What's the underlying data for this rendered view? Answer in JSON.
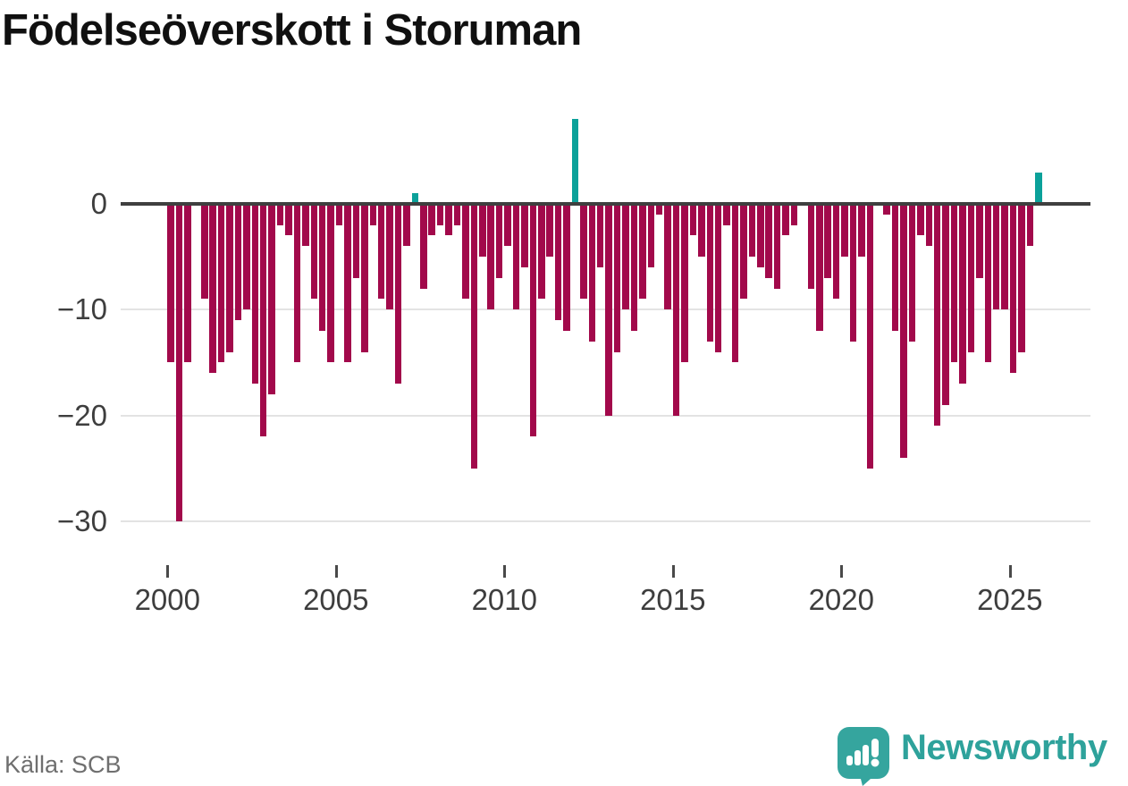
{
  "header": {
    "title": "Födelseöverskott i Storuman"
  },
  "footer": {
    "source": "Källa: SCB",
    "brand": "Newsworthy"
  },
  "chart_data": {
    "type": "bar",
    "title": "Födelseöverskott i Storuman",
    "frequency": "quarterly",
    "start_year": 2000,
    "categories_note": "values are quarterly birth surplus from 2000Q1 through 2025Q4",
    "values": [
      -15,
      -30,
      -15,
      0,
      -9,
      -16,
      -15,
      -14,
      -11,
      -10,
      -17,
      -22,
      -18,
      -2,
      -3,
      -15,
      -4,
      -9,
      -12,
      -15,
      -2,
      -15,
      -7,
      -14,
      -2,
      -9,
      -10,
      -17,
      -4,
      1,
      -8,
      -3,
      -2,
      -3,
      -2,
      -9,
      -25,
      -5,
      -10,
      -7,
      -4,
      -10,
      -6,
      -22,
      -9,
      -5,
      -11,
      -12,
      8,
      -9,
      -13,
      -6,
      -20,
      -14,
      -10,
      -12,
      -9,
      -6,
      -1,
      -10,
      -20,
      -15,
      -3,
      -5,
      -13,
      -14,
      -2,
      -15,
      -9,
      -5,
      -6,
      -7,
      -8,
      -3,
      -2,
      0,
      -8,
      -12,
      -7,
      -9,
      -5,
      -13,
      -5,
      -25,
      0,
      -1,
      -12,
      -24,
      -13,
      -3,
      -4,
      -21,
      -19,
      -15,
      -17,
      -14,
      -7,
      -15,
      -10,
      -10,
      -16,
      -14,
      -4,
      3
    ],
    "y_ticks": [
      {
        "value": 0,
        "label": "0"
      },
      {
        "value": -10,
        "label": "−10"
      },
      {
        "value": -20,
        "label": "−20"
      },
      {
        "value": -30,
        "label": "−30"
      }
    ],
    "x_ticks": [
      {
        "year": 2000,
        "label": "2000"
      },
      {
        "year": 2005,
        "label": "2005"
      },
      {
        "year": 2010,
        "label": "2010"
      },
      {
        "year": 2015,
        "label": "2015"
      },
      {
        "year": 2020,
        "label": "2020"
      },
      {
        "year": 2025,
        "label": "2025"
      }
    ],
    "ylim": [
      -30,
      8
    ],
    "grid": true,
    "legend": "none",
    "colors": {
      "negative": "#a2094b",
      "positive": "#0ba19a",
      "axis": "#3f3f3f",
      "grid": "#e3e3e3",
      "tick_label": "#3e3e3e",
      "brand_teal": "#2ea29b"
    }
  }
}
